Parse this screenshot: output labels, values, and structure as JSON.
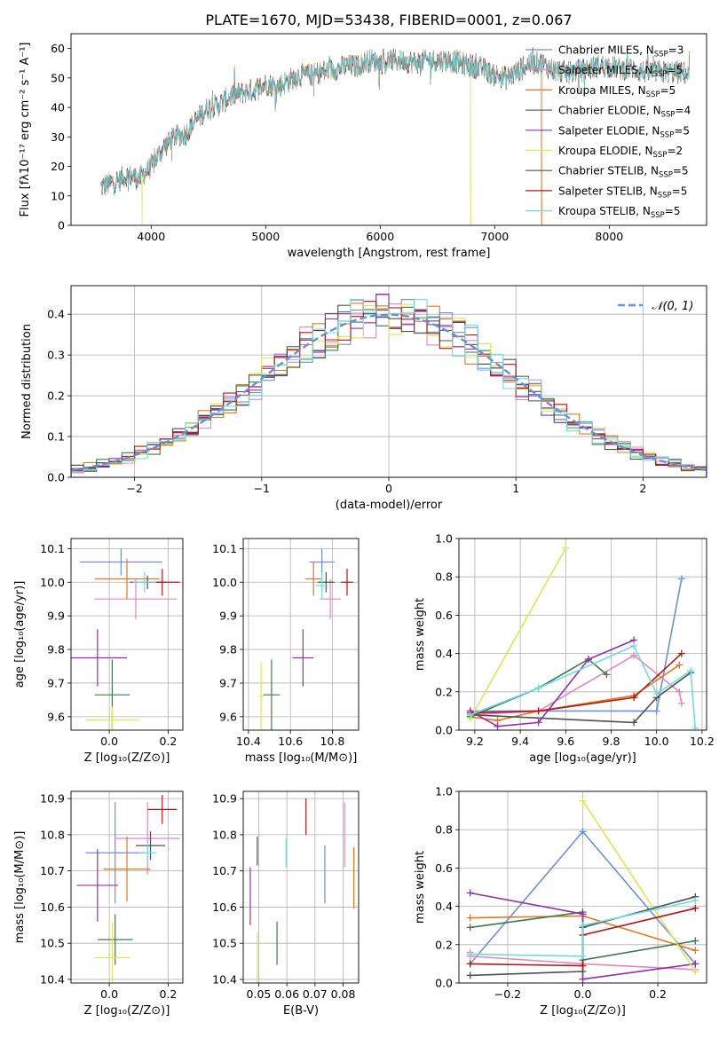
{
  "title": "PLATE=1670, MJD=53438, FIBERID=0001, z=0.067",
  "colors": {
    "Chabrier MILES": "#6f8fd8",
    "Salpeter MILES": "#e587be",
    "Kroupa MILES": "#e07820",
    "Chabrier ELODIE": "#3f7a4e",
    "Salpeter ELODIE": "#9030b0",
    "Kroupa ELODIE": "#d8ea50",
    "Chabrier STELIB": "#505050",
    "Salpeter STELIB": "#b01818",
    "Kroupa STELIB": "#70dcdc",
    "normal_curve": "#6a8fd8",
    "grid": "#b0b0b0"
  },
  "chart_data": [
    {
      "id": "spectrum",
      "type": "line",
      "xlabel": "wavelength [Angstrom, rest frame]",
      "ylabel": "Flux [fλ10⁻¹⁷ erg cm⁻² s⁻¹ A⁻¹]",
      "xlim": [
        3300,
        8850
      ],
      "ylim": [
        0,
        65
      ],
      "xticks": [
        4000,
        5000,
        6000,
        7000,
        8000
      ],
      "yticks": [
        0,
        10,
        20,
        30,
        40,
        50,
        60
      ],
      "grid": false,
      "legend_position": "top-right",
      "legend": [
        "Chabrier MILES, N_SSP=3",
        "Salpeter MILES, N_SSP=5",
        "Kroupa MILES, N_SSP=5",
        "Chabrier ELODIE, N_SSP=4",
        "Salpeter ELODIE, N_SSP=5",
        "Kroupa ELODIE, N_SSP=2",
        "Chabrier STELIB, N_SSP=5",
        "Salpeter STELIB, N_SSP=5",
        "Kroupa STELIB, N_SSP=5"
      ],
      "continuum": {
        "x": [
          3560,
          3700,
          3800,
          3900,
          4000,
          4100,
          4200,
          4300,
          4400,
          4500,
          4600,
          4700,
          4800,
          4900,
          5000,
          5100,
          5200,
          5300,
          5400,
          5500,
          5600,
          5700,
          5800,
          5900,
          6000,
          6100,
          6200,
          6300,
          6400,
          6500,
          6600,
          6700,
          6800,
          6900,
          7000,
          7100,
          7200,
          7300,
          7400,
          7500,
          7600,
          7700,
          7800,
          7900,
          8000,
          8100,
          8200,
          8300,
          8400,
          8500,
          8600,
          8700
        ],
        "y": [
          13,
          15,
          17,
          16,
          20,
          26,
          30,
          31,
          36,
          40,
          41,
          44,
          45,
          46,
          48,
          47,
          49,
          51,
          51,
          52,
          53,
          54,
          54,
          56,
          55,
          56,
          56,
          55,
          56,
          56,
          56,
          55,
          54,
          53,
          51,
          50,
          52,
          55,
          55,
          53,
          52,
          52,
          53,
          54,
          54,
          53,
          53,
          52,
          52,
          52,
          52,
          51
        ]
      },
      "dropouts": [
        {
          "series": "Kroupa ELODIE",
          "x": 3920
        },
        {
          "series": "Kroupa ELODIE",
          "x": 6790
        },
        {
          "series": "Kroupa MILES",
          "x": 7410
        }
      ]
    },
    {
      "id": "residuals",
      "type": "histogram",
      "xlabel": "(data-model)/error",
      "ylabel": "Normed distribution",
      "xlim": [
        -2.5,
        2.5
      ],
      "ylim": [
        0,
        0.47
      ],
      "xticks": [
        -2,
        -1,
        0,
        1,
        2
      ],
      "yticks": [
        0.0,
        0.1,
        0.2,
        0.3,
        0.4
      ],
      "grid": true,
      "legend_position": "top-right",
      "legend": [
        "𝒩(0, 1)"
      ],
      "bin_width": 0.1
    },
    {
      "id": "age-vs-Z",
      "type": "errorbar",
      "xlabel": "Z [log₁₀(Z/Z⊙)]",
      "ylabel": "age  [log₁₀(age/yr)]",
      "xlim": [
        -0.13,
        0.25
      ],
      "ylim": [
        9.56,
        10.13
      ],
      "xticks": [
        0.0,
        0.2
      ],
      "yticks": [
        9.6,
        9.7,
        9.8,
        9.9,
        10.0,
        10.1
      ],
      "grid": true,
      "points": [
        {
          "series": "Chabrier MILES",
          "x": 0.04,
          "y": 10.06,
          "xerr": 0.14,
          "yerr": 0.04
        },
        {
          "series": "Salpeter MILES",
          "x": 0.09,
          "y": 9.95,
          "xerr": 0.14,
          "yerr": 0.06
        },
        {
          "series": "Kroupa MILES",
          "x": 0.06,
          "y": 10.01,
          "xerr": 0.11,
          "yerr": 0.06
        },
        {
          "series": "Chabrier ELODIE",
          "x": 0.01,
          "y": 9.665,
          "xerr": 0.06,
          "yerr": 0.105
        },
        {
          "series": "Salpeter ELODIE",
          "x": -0.04,
          "y": 9.775,
          "xerr": 0.1,
          "yerr": 0.085
        },
        {
          "series": "Kroupa ELODIE",
          "x": 0.01,
          "y": 9.59,
          "xerr": 0.09,
          "yerr": 0.04
        },
        {
          "series": "Chabrier STELIB",
          "x": 0.13,
          "y": 10.0,
          "xerr": 0.06,
          "yerr": 0.02
        },
        {
          "series": "Salpeter STELIB",
          "x": 0.18,
          "y": 10.0,
          "xerr": 0.06,
          "yerr": 0.04
        },
        {
          "series": "Kroupa STELIB",
          "x": 0.12,
          "y": 10.0,
          "xerr": 0.04,
          "yerr": 0.03
        }
      ]
    },
    {
      "id": "age-vs-mass",
      "type": "errorbar",
      "xlabel": "mass [log₁₀(M/M⊙)]",
      "ylabel": "",
      "xlim": [
        10.375,
        10.925
      ],
      "ylim": [
        9.56,
        10.13
      ],
      "xticks": [
        10.4,
        10.6,
        10.8
      ],
      "yticks": [
        9.6,
        9.7,
        9.8,
        9.9,
        10.0,
        10.1
      ],
      "grid": true,
      "points": [
        {
          "series": "Chabrier MILES",
          "x": 10.75,
          "y": 10.06,
          "xerr": 0.06,
          "yerr": 0.04
        },
        {
          "series": "Salpeter MILES",
          "x": 10.79,
          "y": 9.95,
          "xerr": 0.05,
          "yerr": 0.06
        },
        {
          "series": "Kroupa MILES",
          "x": 10.71,
          "y": 10.01,
          "xerr": 0.04,
          "yerr": 0.05
        },
        {
          "series": "Chabrier ELODIE",
          "x": 10.51,
          "y": 9.665,
          "xerr": 0.04,
          "yerr": 0.105
        },
        {
          "series": "Salpeter ELODIE",
          "x": 10.66,
          "y": 9.775,
          "xerr": 0.05,
          "yerr": 0.085
        },
        {
          "series": "Kroupa ELODIE",
          "x": 10.46,
          "y": 9.66,
          "xerr": 0.01,
          "yerr": 0.1
        },
        {
          "series": "Chabrier STELIB",
          "x": 10.77,
          "y": 10.0,
          "xerr": 0.04,
          "yerr": 0.03
        },
        {
          "series": "Salpeter STELIB",
          "x": 10.87,
          "y": 10.0,
          "xerr": 0.03,
          "yerr": 0.04
        },
        {
          "series": "Kroupa STELIB",
          "x": 10.75,
          "y": 9.99,
          "xerr": 0.03,
          "yerr": 0.04
        }
      ]
    },
    {
      "id": "massweight-vs-age",
      "type": "line",
      "xlabel": "age  [log₁₀(age/yr)]",
      "ylabel": "mass weight",
      "xlim": [
        9.13,
        10.22
      ],
      "ylim": [
        0,
        1.0
      ],
      "xticks": [
        9.2,
        9.4,
        9.6,
        9.8,
        10.0,
        10.2
      ],
      "yticks": [
        0.0,
        0.2,
        0.4,
        0.6,
        0.8,
        1.0
      ],
      "grid": true,
      "series": [
        {
          "name": "Chabrier MILES",
          "x": [
            9.18,
            9.48,
            10.0,
            10.11
          ],
          "y": [
            0.1,
            0.1,
            0.1,
            0.79
          ]
        },
        {
          "name": "Salpeter MILES",
          "x": [
            9.18,
            9.48,
            9.9,
            10.1,
            10.11
          ],
          "y": [
            0.08,
            0.1,
            0.39,
            0.2,
            0.14
          ]
        },
        {
          "name": "Kroupa MILES",
          "x": [
            9.18,
            9.3,
            9.48,
            9.9,
            10.1
          ],
          "y": [
            0.07,
            0.05,
            0.1,
            0.18,
            0.34
          ]
        },
        {
          "name": "Chabrier ELODIE",
          "x": [
            9.18,
            9.48,
            9.7,
            9.78
          ],
          "y": [
            0.07,
            0.22,
            0.37,
            0.29
          ]
        },
        {
          "name": "Salpeter ELODIE",
          "x": [
            9.18,
            9.3,
            9.48,
            9.7,
            9.9
          ],
          "y": [
            0.1,
            0.02,
            0.04,
            0.37,
            0.47
          ]
        },
        {
          "name": "Kroupa ELODIE",
          "x": [
            9.18,
            9.6
          ],
          "y": [
            0.06,
            0.95
          ]
        },
        {
          "name": "Chabrier STELIB",
          "x": [
            9.18,
            9.9,
            10.0,
            10.15
          ],
          "y": [
            0.08,
            0.04,
            0.17,
            0.3
          ]
        },
        {
          "name": "Salpeter STELIB",
          "x": [
            9.18,
            9.48,
            9.9,
            10.11
          ],
          "y": [
            0.09,
            0.1,
            0.17,
            0.4
          ]
        },
        {
          "name": "Kroupa STELIB",
          "x": [
            9.18,
            9.48,
            9.9,
            10.0,
            10.15,
            10.17
          ],
          "y": [
            0.08,
            0.22,
            0.44,
            0.19,
            0.31,
            0.01
          ]
        }
      ]
    },
    {
      "id": "mass-vs-Z",
      "type": "errorbar",
      "xlabel": "Z [log₁₀(Z/Z⊙)]",
      "ylabel": "mass [log₁₀(M/M⊙)]",
      "xlim": [
        -0.13,
        0.25
      ],
      "ylim": [
        10.39,
        10.92
      ],
      "xticks": [
        0.0,
        0.2
      ],
      "yticks": [
        10.4,
        10.5,
        10.6,
        10.7,
        10.8,
        10.9
      ],
      "grid": true,
      "points": [
        {
          "series": "Chabrier MILES",
          "x": 0.02,
          "y": 10.75,
          "xerr": 0.1,
          "yerr": 0.14
        },
        {
          "series": "Salpeter MILES",
          "x": 0.13,
          "y": 10.79,
          "xerr": 0.11,
          "yerr": 0.1
        },
        {
          "series": "Kroupa MILES",
          "x": 0.06,
          "y": 10.705,
          "xerr": 0.08,
          "yerr": 0.09
        },
        {
          "series": "Chabrier ELODIE",
          "x": 0.02,
          "y": 10.51,
          "xerr": 0.06,
          "yerr": 0.07
        },
        {
          "series": "Salpeter ELODIE",
          "x": -0.04,
          "y": 10.66,
          "xerr": 0.07,
          "yerr": 0.1
        },
        {
          "series": "Kroupa ELODIE",
          "x": 0.01,
          "y": 10.46,
          "xerr": 0.06,
          "yerr": 0.1
        },
        {
          "series": "Chabrier STELIB",
          "x": 0.14,
          "y": 10.77,
          "xerr": 0.05,
          "yerr": 0.04
        },
        {
          "series": "Salpeter STELIB",
          "x": 0.18,
          "y": 10.87,
          "xerr": 0.05,
          "yerr": 0.04
        },
        {
          "series": "Kroupa STELIB",
          "x": 0.13,
          "y": 10.75,
          "xerr": 0.03,
          "yerr": 0.03
        }
      ]
    },
    {
      "id": "mass-vs-EBV",
      "type": "errorbar",
      "xlabel": "E(B-V)",
      "ylabel": "",
      "xlim": [
        0.0445,
        0.0855
      ],
      "ylim": [
        10.39,
        10.92
      ],
      "xticks": [
        0.05,
        0.06,
        0.07,
        0.08
      ],
      "yticks": [
        10.4,
        10.5,
        10.6,
        10.7,
        10.8,
        10.9
      ],
      "grid": true,
      "points": [
        {
          "series": "Chabrier MILES",
          "x": 0.0735,
          "y": 10.69,
          "xerr": 0,
          "yerr": 0.08
        },
        {
          "series": "Salpeter MILES",
          "x": 0.0805,
          "y": 10.8,
          "xerr": 0,
          "yerr": 0.09
        },
        {
          "series": "Kroupa MILES",
          "x": 0.0838,
          "y": 10.68,
          "xerr": 0,
          "yerr": 0.085
        },
        {
          "series": "Chabrier ELODIE",
          "x": 0.0565,
          "y": 10.5,
          "xerr": 0,
          "yerr": 0.06
        },
        {
          "series": "Salpeter ELODIE",
          "x": 0.047,
          "y": 10.63,
          "xerr": 0,
          "yerr": 0.08
        },
        {
          "series": "Kroupa ELODIE",
          "x": 0.0495,
          "y": 10.46,
          "xerr": 0,
          "yerr": 0.07
        },
        {
          "series": "Chabrier STELIB",
          "x": 0.0495,
          "y": 10.755,
          "xerr": 0,
          "yerr": 0.04
        },
        {
          "series": "Salpeter STELIB",
          "x": 0.0668,
          "y": 10.85,
          "xerr": 0,
          "yerr": 0.05
        },
        {
          "series": "Kroupa STELIB",
          "x": 0.0597,
          "y": 10.75,
          "xerr": 0,
          "yerr": 0.04
        }
      ]
    },
    {
      "id": "massweight-vs-Z",
      "type": "line",
      "xlabel": "Z [log₁₀(Z/Z⊙)]",
      "ylabel": "mass weight",
      "xlim": [
        -0.33,
        0.33
      ],
      "ylim": [
        0,
        1.0
      ],
      "xticks": [
        -0.2,
        0.0,
        0.2
      ],
      "yticks": [
        0.0,
        0.2,
        0.4,
        0.6,
        0.8,
        1.0
      ],
      "grid": true,
      "series": [
        {
          "name": "Chabrier MILES",
          "x": [
            -0.3,
            0.0,
            0.3
          ],
          "y": [
            0.1,
            0.79,
            0.1
          ]
        },
        {
          "name": "Salpeter MILES",
          "x": [
            -0.3,
            -0.3,
            0.0,
            0.3
          ],
          "y": [
            0.16,
            0.14,
            0.1,
            0.07
          ]
        },
        {
          "name": "Kroupa MILES",
          "x": [
            -0.3,
            0.0,
            0.3
          ],
          "y": [
            0.34,
            0.35,
            0.17
          ]
        },
        {
          "name": "Chabrier ELODIE",
          "x": [
            -0.3,
            0.0,
            0.0,
            0.3
          ],
          "y": [
            0.29,
            0.37,
            0.12,
            0.22
          ]
        },
        {
          "name": "Salpeter ELODIE",
          "x": [
            -0.3,
            0.0,
            0.0,
            0.3
          ],
          "y": [
            0.47,
            0.36,
            0.02,
            0.1
          ]
        },
        {
          "name": "Kroupa ELODIE",
          "x": [
            0.0,
            0.3
          ],
          "y": [
            0.95,
            0.06
          ]
        },
        {
          "name": "Chabrier STELIB",
          "x": [
            -0.3,
            0.0,
            0.0,
            0.3
          ],
          "y": [
            0.04,
            0.06,
            0.29,
            0.45
          ]
        },
        {
          "name": "Salpeter STELIB",
          "x": [
            -0.3,
            0.0,
            0.0,
            0.3
          ],
          "y": [
            0.1,
            0.09,
            0.25,
            0.39
          ]
        },
        {
          "name": "Kroupa STELIB",
          "x": [
            -0.3,
            0.0,
            0.0,
            0.3
          ],
          "y": [
            0.15,
            0.14,
            0.3,
            0.43
          ]
        }
      ]
    }
  ]
}
